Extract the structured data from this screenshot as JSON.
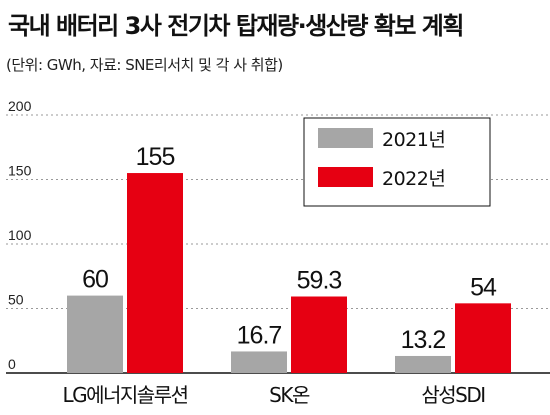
{
  "title": "국내 배터리 3사 전기차 탑재량·생산량 확보 계획",
  "subtitle": "(단위: GWh, 자료: SNE리서치 및 각 사 취합)",
  "colors": {
    "series_2021": "#a6a6a6",
    "series_2022": "#e60012",
    "grid": "#9a9a9a",
    "axis": "#111111"
  },
  "chart_data": {
    "type": "bar",
    "categories": [
      "LG에너지솔루션",
      "SK온",
      "삼성SDI"
    ],
    "series": [
      {
        "name": "2021년",
        "values": [
          60,
          16.7,
          13.2
        ],
        "labels": [
          "60",
          "16.7",
          "13.2"
        ]
      },
      {
        "name": "2022년",
        "values": [
          155,
          59.3,
          54
        ],
        "labels": [
          "155",
          "59.3",
          "54"
        ]
      }
    ],
    "yticks": [
      "200",
      "150",
      "100",
      "50",
      "0"
    ],
    "ylim": [
      0,
      200
    ],
    "grid": true,
    "legend_position": "top-right"
  }
}
